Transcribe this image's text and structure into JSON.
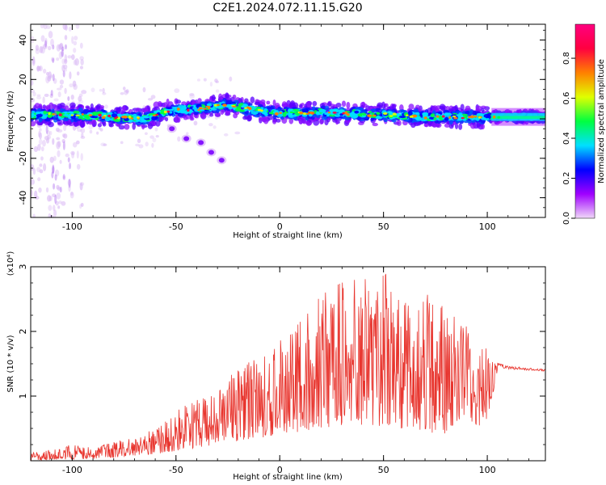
{
  "figure_title": "C2E1.2024.072.11.15.G20",
  "chart_data": [
    {
      "type": "heatmap",
      "title": "",
      "xlabel": "Height of straight line (km)",
      "ylabel": "Frequency (Hz)",
      "xlim": [
        -120,
        128
      ],
      "ylim": [
        -50,
        48
      ],
      "xticks": [
        -100,
        -50,
        0,
        50,
        100
      ],
      "yticks": [
        -40,
        -20,
        0,
        20,
        40
      ],
      "colorbar": {
        "label": "Normalized spectral amplitude",
        "range": [
          0,
          0.97
        ],
        "ticks": [
          "0.0",
          "0.2",
          "0.4",
          "0.6",
          "0.8"
        ],
        "ticks_values": [
          0.0,
          0.2,
          0.4,
          0.6,
          0.8
        ],
        "colors": [
          "#f0d8f8",
          "#a000ff",
          "#0000ff",
          "#00e0ff",
          "#00ff40",
          "#e0ff00",
          "#ff8000",
          "#ff0040",
          "#ff007f"
        ]
      },
      "ridge_center_hz": [
        {
          "x": -120,
          "y": 2
        },
        {
          "x": -100,
          "y": 2
        },
        {
          "x": -80,
          "y": 1
        },
        {
          "x": -65,
          "y": 0
        },
        {
          "x": -55,
          "y": 4
        },
        {
          "x": -40,
          "y": 5
        },
        {
          "x": -25,
          "y": 7
        },
        {
          "x": -10,
          "y": 4
        },
        {
          "x": 0,
          "y": 3
        },
        {
          "x": 25,
          "y": 3
        },
        {
          "x": 50,
          "y": 2
        },
        {
          "x": 75,
          "y": 1
        },
        {
          "x": 100,
          "y": 1
        },
        {
          "x": 128,
          "y": 1
        }
      ],
      "side_branch_hz": [
        {
          "x": -52,
          "y": -5
        },
        {
          "x": -45,
          "y": -10
        },
        {
          "x": -38,
          "y": -12
        },
        {
          "x": -33,
          "y": -17
        },
        {
          "x": -28,
          "y": -21
        }
      ]
    },
    {
      "type": "line",
      "title": "",
      "xlabel": "Height of straight line (km)",
      "ylabel": "SNR (10 * v/v)",
      "y_multiplier": "(x10⁴)",
      "xlim": [
        -120,
        128
      ],
      "ylim": [
        0,
        3
      ],
      "xticks": [
        -100,
        -50,
        0,
        50,
        100
      ],
      "yticks": [
        1,
        2,
        3
      ],
      "color": "#e8352e",
      "envelope": {
        "x": [
          -120,
          -100,
          -90,
          -80,
          -70,
          -60,
          -50,
          -40,
          -30,
          -20,
          -10,
          0,
          10,
          20,
          30,
          40,
          50,
          60,
          70,
          80,
          90,
          100,
          105,
          110,
          128
        ],
        "upper": [
          0.12,
          0.25,
          0.2,
          0.3,
          0.35,
          0.5,
          0.8,
          0.95,
          1.05,
          1.5,
          1.6,
          1.95,
          2.2,
          2.6,
          2.8,
          2.85,
          2.95,
          2.75,
          2.6,
          2.35,
          2.1,
          1.8,
          1.55,
          1.48,
          1.42
        ],
        "lower": [
          0.0,
          0.02,
          0.03,
          0.05,
          0.08,
          0.1,
          0.15,
          0.2,
          0.25,
          0.3,
          0.35,
          0.4,
          0.45,
          0.5,
          0.55,
          0.55,
          0.5,
          0.5,
          0.45,
          0.4,
          0.45,
          0.6,
          1.4,
          1.38,
          1.36
        ]
      }
    }
  ]
}
